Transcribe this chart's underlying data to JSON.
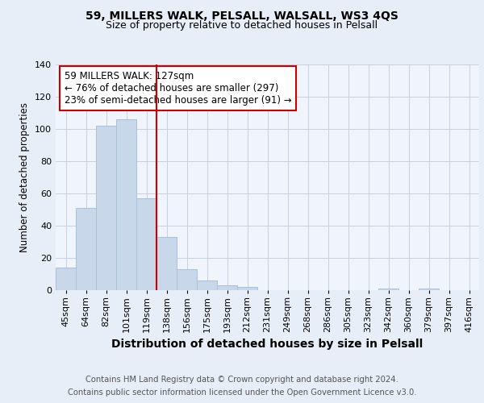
{
  "title": "59, MILLERS WALK, PELSALL, WALSALL, WS3 4QS",
  "subtitle": "Size of property relative to detached houses in Pelsall",
  "xlabel": "Distribution of detached houses by size in Pelsall",
  "ylabel": "Number of detached properties",
  "footer_line1": "Contains HM Land Registry data © Crown copyright and database right 2024.",
  "footer_line2": "Contains public sector information licensed under the Open Government Licence v3.0.",
  "categories": [
    "45sqm",
    "64sqm",
    "82sqm",
    "101sqm",
    "119sqm",
    "138sqm",
    "156sqm",
    "175sqm",
    "193sqm",
    "212sqm",
    "231sqm",
    "249sqm",
    "268sqm",
    "286sqm",
    "305sqm",
    "323sqm",
    "342sqm",
    "360sqm",
    "379sqm",
    "397sqm",
    "416sqm"
  ],
  "values": [
    14,
    51,
    102,
    106,
    57,
    33,
    13,
    6,
    3,
    2,
    0,
    0,
    0,
    0,
    0,
    0,
    1,
    0,
    1,
    0,
    0
  ],
  "bar_color": "#c8d8ea",
  "bar_edge_color": "#a8c0d8",
  "marker_bin_index": 4,
  "marker_color": "#cc0000",
  "annotation_text": "59 MILLERS WALK: 127sqm\n← 76% of detached houses are smaller (297)\n23% of semi-detached houses are larger (91) →",
  "annotation_box_color": "#ffffff",
  "annotation_box_edge_color": "#cc0000",
  "ylim": [
    0,
    140
  ],
  "yticks": [
    0,
    20,
    40,
    60,
    80,
    100,
    120,
    140
  ],
  "bg_color": "#e8eef8",
  "plot_bg_color": "#f0f4fc",
  "grid_color": "#c8d0e0",
  "title_fontsize": 10,
  "subtitle_fontsize": 9,
  "xlabel_fontsize": 10,
  "ylabel_fontsize": 8.5,
  "tick_fontsize": 8,
  "footer_fontsize": 7.2,
  "annot_fontsize": 8.5
}
